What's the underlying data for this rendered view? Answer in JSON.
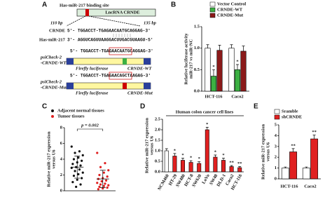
{
  "panel_a": {
    "label": "A",
    "title": "Has-miR-217 binding site",
    "gene_box": "LncRNA CRNDE",
    "start": "110 bp",
    "end": "135 bp",
    "crnde_name": "CRNDE",
    "crnde_seq": "5'- TGGACCT-TGAGAACAATGCAGGAG-3'",
    "mir_name": "Has-miR-217",
    "mir_seq": "3'- AGGUCAGUUAAGGACUUGACGUAAGU-5'",
    "wt_label": [
      "psiCheck-2",
      "-CRNDE-WT"
    ],
    "wt_seq": "5'- TGGACCT-TGAGAACAATGCAGGAG-3'",
    "wt_box": [
      "Firefly luciferase",
      "CRNDE-WT"
    ],
    "mut_label": [
      "psiCheck-2",
      "-CRNDE-Mut"
    ],
    "mut_seq": "5'- TGGACCT-TGAGAACAGCTAAGAG-3'",
    "mut_box": [
      "Firefly luciferase",
      "CRNDE-Mut"
    ]
  },
  "chart_data": [
    {
      "type": "bar",
      "label": "B",
      "ylabel": [
        "Relative luciferase activity",
        "miR-217 vs miR-NC"
      ],
      "categories": [
        "HCT-116",
        "Caco2"
      ],
      "series": [
        {
          "name": "Vector Control",
          "color": "#ffffff",
          "values": [
            1.0,
            1.0
          ],
          "errors": [
            0.08,
            0.08
          ],
          "significance": [
            null,
            null
          ]
        },
        {
          "name": "CRNDE-WT",
          "color": "#3cb043",
          "values": [
            0.35,
            0.5
          ],
          "errors": [
            0.15,
            0.12
          ],
          "significance": [
            "*",
            "*"
          ]
        },
        {
          "name": "CRNDE-Mut",
          "color": "#8b1a1a",
          "values": [
            0.95,
            0.93
          ],
          "errors": [
            0.12,
            0.12
          ],
          "significance": [
            null,
            null
          ]
        }
      ],
      "ylim": [
        0,
        1.5
      ],
      "yticks": [
        {
          "value": 0,
          "label": "0.0"
        },
        {
          "value": 0.5,
          "label": "0.5"
        },
        {
          "value": 1,
          "label": "1.0"
        },
        {
          "value": 1.5,
          "label": "1.5"
        }
      ]
    },
    {
      "type": "dot",
      "label": "C",
      "ylabel": [
        "Relative miR-217 expression",
        "versus U6"
      ],
      "annotation": "p = 0.002",
      "series": [
        {
          "name": "Adjacent normal tissues",
          "color": "#111111",
          "values": [
            5.6,
            5.0,
            4.8,
            4.5,
            4.2,
            4.0,
            3.8,
            3.6,
            3.4,
            3.2,
            3.0,
            2.9,
            2.7,
            2.5,
            2.3,
            2.1,
            1.9,
            1.6,
            1.4,
            1.1,
            0.8,
            0.5
          ],
          "mean": 3.0,
          "sd": 1.4
        },
        {
          "name": "Tumor tissues",
          "color": "#e02020",
          "values": [
            4.8,
            3.5,
            3.0,
            2.6,
            2.3,
            2.0,
            1.8,
            1.6,
            1.5,
            1.3,
            1.2,
            1.0,
            0.9,
            0.8,
            0.7,
            0.6,
            0.5,
            0.4,
            0.3,
            0.2
          ],
          "mean": 1.5,
          "sd": 1.1
        }
      ],
      "ylim": [
        0,
        8
      ],
      "yticks": [
        0,
        2,
        4,
        6,
        8
      ]
    },
    {
      "type": "bar",
      "label": "D",
      "title": "Human colon cancer cell lines",
      "ylabel": [
        "Relative miR-217 expression",
        "versus U6"
      ],
      "categories": [
        "NCM460",
        "HT-29",
        "SW480",
        "HCT-8",
        "SW620",
        "LoVo",
        "SW48",
        "DLD-1",
        "Caco2",
        "HCT-116"
      ],
      "values": [
        1.0,
        0.75,
        0.55,
        0.45,
        0.4,
        2.0,
        0.7,
        0.55,
        0.25,
        0.2
      ],
      "errors": [
        0.1,
        0.12,
        0.1,
        0.08,
        0.08,
        0.12,
        0.1,
        0.1,
        0.05,
        0.05
      ],
      "colors": [
        "#ffffff",
        "#e02020",
        "#e02020",
        "#e02020",
        "#e02020",
        "#e02020",
        "#e02020",
        "#e02020",
        "#e02020",
        "#e02020"
      ],
      "significance": [
        null,
        "*",
        "*",
        "*",
        "*",
        "*",
        "*",
        "*",
        "**",
        "**"
      ],
      "ylim": [
        0,
        2.5
      ],
      "yticks": [
        {
          "value": 0,
          "label": "0.0"
        },
        {
          "value": 0.5,
          "label": "0.5"
        },
        {
          "value": 1,
          "label": "1.0"
        },
        {
          "value": 1.5,
          "label": "1.5"
        },
        {
          "value": 2,
          "label": "2.0"
        },
        {
          "value": 2.5,
          "label": "2.5"
        }
      ]
    },
    {
      "type": "bar",
      "label": "E",
      "ylabel": [
        "Relative miR-217 expression",
        "versus U6"
      ],
      "categories": [
        "HCT-116",
        "Caco2"
      ],
      "series": [
        {
          "name": "Sramble",
          "color": "#ffffff",
          "values": [
            1.0,
            1.0
          ],
          "errors": [
            0.1,
            0.1
          ],
          "significance": [
            null,
            null
          ]
        },
        {
          "name": "shCRNDE",
          "color": "#e02020",
          "values": [
            2.5,
            3.7
          ],
          "errors": [
            0.3,
            0.35
          ],
          "significance": [
            "**",
            "**"
          ]
        }
      ],
      "ylim": [
        0,
        5
      ],
      "yticks": [
        0,
        1,
        2,
        3,
        4,
        5
      ]
    }
  ]
}
